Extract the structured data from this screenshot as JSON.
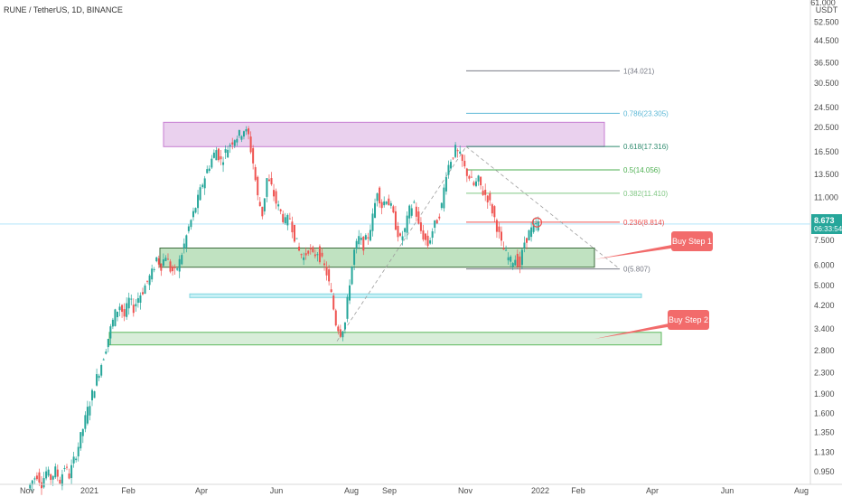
{
  "chart_data": {
    "type": "candlestick",
    "title": "RUNE / TetherUS, 1D, BINANCE",
    "y_scale": "log",
    "ylim": [
      0.85,
      61.0
    ],
    "x_axis_labels": [
      "Nov",
      "2021",
      "Feb",
      "Apr",
      "Jun",
      "Aug",
      "Sep",
      "Nov",
      "2022",
      "Feb",
      "Apr",
      "Jun",
      "Aug"
    ],
    "y_axis_ticks": [
      "0.950",
      "1.130",
      "1.350",
      "1.600",
      "1.900",
      "2.300",
      "2.800",
      "3.400",
      "4.200",
      "5.000",
      "6.000",
      "7.500",
      "9.000",
      "11.000",
      "13.500",
      "16.500",
      "20.500",
      "24.500",
      "30.500",
      "36.500",
      "44.500",
      "52.500"
    ],
    "y_axis_unit": "USDT",
    "y_axis_top_tick": "61.000",
    "current_price": {
      "value": "8.673",
      "countdown": "06:33:54"
    },
    "fib_levels": [
      {
        "ratio": "1",
        "price": 34.021,
        "label": "1(34.021)",
        "color": "#787b86"
      },
      {
        "ratio": "0.786",
        "price": 23.305,
        "label": "0.786(23.305)",
        "color": "#5cb8d6"
      },
      {
        "ratio": "0.618",
        "price": 17.316,
        "label": "0.618(17.316)",
        "color": "#2e8b6e"
      },
      {
        "ratio": "0.5",
        "price": 14.056,
        "label": "0.5(14.056)",
        "color": "#4caf50"
      },
      {
        "ratio": "0.382",
        "price": 11.41,
        "label": "0.382(11.410)",
        "color": "#81c784"
      },
      {
        "ratio": "0.236",
        "price": 8.814,
        "label": "0.236(8.814)",
        "color": "#f05350"
      },
      {
        "ratio": "0",
        "price": 5.807,
        "label": "0(5.807)",
        "color": "#787b86"
      }
    ],
    "zones": [
      {
        "name": "resistance-zone",
        "low": 17.3,
        "high": 21.5,
        "color": "#e1bee7"
      },
      {
        "name": "buy-step-1-zone",
        "low": 5.9,
        "high": 7.0,
        "color": "#a5d6a7"
      },
      {
        "name": "support-line-zone",
        "low": 4.5,
        "high": 4.65,
        "color": "#b2ebf2"
      },
      {
        "name": "buy-step-2-zone",
        "low": 2.95,
        "high": 3.3,
        "color": "#c8e6c9"
      }
    ],
    "annotations": [
      {
        "text": "Buy Step 1",
        "color": "#f26b6b"
      },
      {
        "text": "Buy Step 2",
        "color": "#f26b6b"
      }
    ],
    "price_path": [
      [
        0,
        0.82
      ],
      [
        2,
        0.88
      ],
      [
        4,
        0.93
      ],
      [
        6,
        0.86
      ],
      [
        8,
        0.95
      ],
      [
        10,
        0.9
      ],
      [
        12,
        0.96
      ],
      [
        14,
        0.88
      ],
      [
        16,
        1.0
      ],
      [
        18,
        0.92
      ],
      [
        20,
        1.05
      ],
      [
        22,
        1.2
      ],
      [
        24,
        1.4
      ],
      [
        26,
        1.65
      ],
      [
        28,
        1.9
      ],
      [
        30,
        2.2
      ],
      [
        32,
        2.5
      ],
      [
        34,
        2.9
      ],
      [
        36,
        3.4
      ],
      [
        38,
        3.9
      ],
      [
        40,
        4.2
      ],
      [
        42,
        3.8
      ],
      [
        44,
        4.4
      ],
      [
        46,
        4.1
      ],
      [
        48,
        4.5
      ],
      [
        50,
        4.8
      ],
      [
        52,
        5.2
      ],
      [
        54,
        5.6
      ],
      [
        56,
        6.4
      ],
      [
        58,
        6.0
      ],
      [
        60,
        6.6
      ],
      [
        62,
        5.8
      ],
      [
        64,
        5.6
      ],
      [
        66,
        6.2
      ],
      [
        68,
        7.2
      ],
      [
        70,
        8.4
      ],
      [
        72,
        9.5
      ],
      [
        74,
        10.8
      ],
      [
        76,
        12.5
      ],
      [
        78,
        14.0
      ],
      [
        80,
        15.5
      ],
      [
        82,
        16.8
      ],
      [
        84,
        15.2
      ],
      [
        86,
        16.5
      ],
      [
        88,
        17.8
      ],
      [
        90,
        18.8
      ],
      [
        92,
        19.2
      ],
      [
        94,
        20.2
      ],
      [
        96,
        19.0
      ],
      [
        98,
        15.0
      ],
      [
        100,
        11.0
      ],
      [
        102,
        9.5
      ],
      [
        104,
        13.0
      ],
      [
        106,
        12.0
      ],
      [
        108,
        10.5
      ],
      [
        110,
        9.6
      ],
      [
        112,
        8.8
      ],
      [
        114,
        9.2
      ],
      [
        116,
        7.8
      ],
      [
        118,
        6.8
      ],
      [
        120,
        6.4
      ],
      [
        122,
        7.0
      ],
      [
        124,
        6.5
      ],
      [
        126,
        6.8
      ],
      [
        128,
        6.2
      ],
      [
        130,
        5.6
      ],
      [
        132,
        4.6
      ],
      [
        134,
        3.6
      ],
      [
        136,
        3.3
      ],
      [
        138,
        3.6
      ],
      [
        140,
        5.2
      ],
      [
        142,
        6.8
      ],
      [
        144,
        7.6
      ],
      [
        146,
        7.2
      ],
      [
        148,
        7.8
      ],
      [
        150,
        9.2
      ],
      [
        152,
        11.8
      ],
      [
        154,
        10.2
      ],
      [
        156,
        11.0
      ],
      [
        158,
        10.0
      ],
      [
        160,
        8.6
      ],
      [
        162,
        7.5
      ],
      [
        164,
        8.2
      ],
      [
        166,
        9.8
      ],
      [
        168,
        10.5
      ],
      [
        170,
        8.5
      ],
      [
        172,
        7.8
      ],
      [
        174,
        7.2
      ],
      [
        176,
        8.2
      ],
      [
        178,
        9.0
      ],
      [
        180,
        10.2
      ],
      [
        182,
        13.8
      ],
      [
        184,
        15.5
      ],
      [
        186,
        16.8
      ],
      [
        188,
        15.8
      ],
      [
        190,
        14.2
      ],
      [
        192,
        13.2
      ],
      [
        194,
        12.2
      ],
      [
        196,
        12.8
      ],
      [
        198,
        11.5
      ],
      [
        200,
        11.0
      ],
      [
        202,
        9.8
      ],
      [
        204,
        8.5
      ],
      [
        206,
        7.2
      ],
      [
        208,
        6.6
      ],
      [
        210,
        6.2
      ],
      [
        212,
        6.4
      ],
      [
        214,
        6.0
      ],
      [
        216,
        7.4
      ],
      [
        218,
        8.0
      ],
      [
        220,
        8.4
      ],
      [
        222,
        8.67
      ]
    ]
  }
}
